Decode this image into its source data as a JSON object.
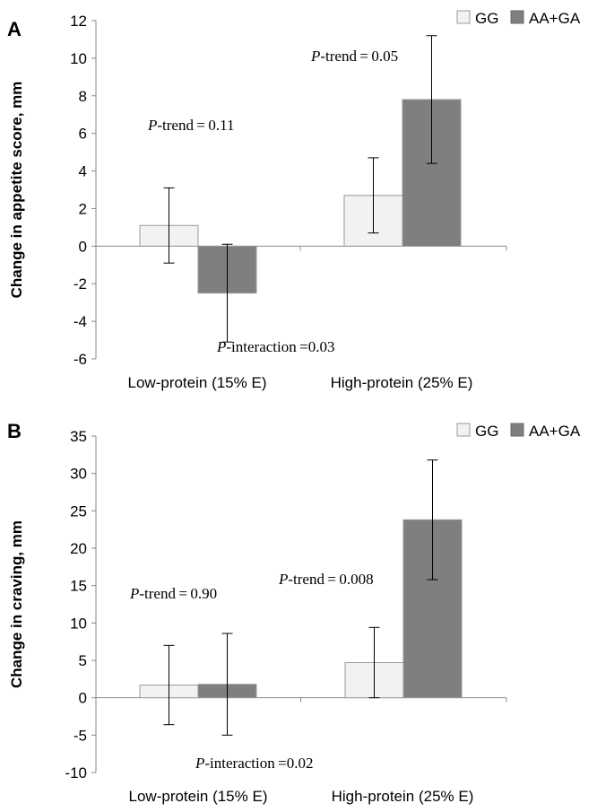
{
  "chart_data": [
    {
      "type": "bar",
      "panel": "A",
      "ylabel": "Change in appetite score, mm",
      "categories": [
        "Low-protein (15% E)",
        "High-protein (25% E)"
      ],
      "series": [
        {
          "name": "GG",
          "values": [
            1.1,
            2.7
          ],
          "error": [
            2.0,
            2.0
          ],
          "color": "#f2f2f2"
        },
        {
          "name": "AA+GA",
          "values": [
            -2.5,
            7.8
          ],
          "error": [
            2.6,
            3.4
          ],
          "color": "#7f7f7f"
        }
      ],
      "ylim": [
        -6,
        12
      ],
      "yticks": [
        -6,
        -4,
        -2,
        0,
        2,
        4,
        6,
        8,
        10,
        12
      ],
      "legend": "top-right",
      "annotations": [
        {
          "italic": "P",
          "text": "-trend = 0.11"
        },
        {
          "italic": "P",
          "text": "-trend = 0.05"
        },
        {
          "italic": "P",
          "text": "-interaction =0.03"
        }
      ]
    },
    {
      "type": "bar",
      "panel": "B",
      "ylabel": "Change in craving, mm",
      "categories": [
        "Low-protein (15% E)",
        "High-protein (25% E)"
      ],
      "series": [
        {
          "name": "GG",
          "values": [
            1.7,
            4.7
          ],
          "error": [
            5.3,
            4.7
          ],
          "color": "#f2f2f2"
        },
        {
          "name": "AA+GA",
          "values": [
            1.8,
            23.8
          ],
          "error": [
            6.8,
            8.0
          ],
          "color": "#7f7f7f"
        }
      ],
      "ylim": [
        -10,
        35
      ],
      "yticks": [
        -10,
        -5,
        0,
        5,
        10,
        15,
        20,
        25,
        30,
        35
      ],
      "legend": "top-right",
      "annotations": [
        {
          "italic": "P",
          "text": "-trend = 0.90"
        },
        {
          "italic": "P",
          "text": "-trend = 0.008"
        },
        {
          "italic": "P",
          "text": "-interaction =0.02"
        }
      ]
    }
  ]
}
